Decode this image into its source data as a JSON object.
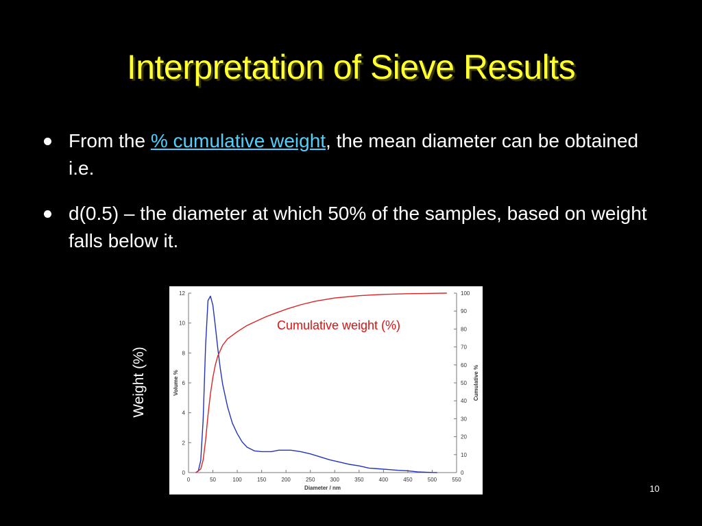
{
  "slide": {
    "title": "Interpretation of Sieve Results",
    "bullets": [
      {
        "before": "From the ",
        "link": "% cumulative weight",
        "after": ", the mean diameter can be obtained i.e."
      },
      {
        "text": "d(0.5) – the diameter at which 50% of the samples, based on weight falls below it."
      }
    ],
    "side_label": "Weight (%)",
    "page_number": "10",
    "colors": {
      "background": "#000000",
      "title": "#ffff33",
      "link": "#4fd1ff"
    }
  },
  "chart_data": {
    "type": "line",
    "xlabel": "Diameter / nm",
    "ylabel": "Volume %",
    "y2label": "Cumulative %",
    "annotation": "Cumulative weight (%)",
    "xlim": [
      0,
      550
    ],
    "ylim": [
      0,
      12
    ],
    "y2lim": [
      0,
      100
    ],
    "xticks": [
      0,
      50,
      100,
      150,
      200,
      250,
      300,
      350,
      400,
      450,
      500,
      550
    ],
    "yticks": [
      0,
      2,
      4,
      6,
      8,
      10,
      12
    ],
    "y2ticks": [
      0,
      10,
      20,
      30,
      40,
      50,
      60,
      70,
      80,
      90,
      100
    ],
    "series": [
      {
        "axis": "left",
        "color": "#2233bb",
        "points": [
          [
            15,
            0
          ],
          [
            20,
            0.1
          ],
          [
            25,
            0.8
          ],
          [
            30,
            3.5
          ],
          [
            35,
            8.5
          ],
          [
            40,
            11.5
          ],
          [
            45,
            11.8
          ],
          [
            50,
            11.2
          ],
          [
            55,
            9.8
          ],
          [
            60,
            8.3
          ],
          [
            65,
            7
          ],
          [
            70,
            5.9
          ],
          [
            80,
            4.4
          ],
          [
            90,
            3.3
          ],
          [
            100,
            2.6
          ],
          [
            110,
            2.05
          ],
          [
            120,
            1.7
          ],
          [
            135,
            1.45
          ],
          [
            150,
            1.4
          ],
          [
            170,
            1.4
          ],
          [
            185,
            1.5
          ],
          [
            210,
            1.5
          ],
          [
            230,
            1.4
          ],
          [
            250,
            1.25
          ],
          [
            270,
            1.05
          ],
          [
            290,
            0.85
          ],
          [
            310,
            0.7
          ],
          [
            330,
            0.55
          ],
          [
            350,
            0.45
          ],
          [
            370,
            0.3
          ],
          [
            390,
            0.25
          ],
          [
            410,
            0.2
          ],
          [
            430,
            0.15
          ],
          [
            450,
            0.12
          ],
          [
            470,
            0.05
          ],
          [
            490,
            0.02
          ],
          [
            510,
            0
          ]
        ]
      },
      {
        "axis": "right",
        "color": "#dd2222",
        "points": [
          [
            15,
            0
          ],
          [
            25,
            2
          ],
          [
            30,
            7
          ],
          [
            35,
            18
          ],
          [
            40,
            32
          ],
          [
            45,
            44
          ],
          [
            50,
            53
          ],
          [
            55,
            60
          ],
          [
            60,
            65
          ],
          [
            70,
            71
          ],
          [
            80,
            74.5
          ],
          [
            90,
            76.5
          ],
          [
            100,
            78.5
          ],
          [
            120,
            82
          ],
          [
            140,
            84.5
          ],
          [
            160,
            87
          ],
          [
            180,
            89
          ],
          [
            200,
            91
          ],
          [
            230,
            93.5
          ],
          [
            260,
            95.5
          ],
          [
            300,
            97.3
          ],
          [
            350,
            98.6
          ],
          [
            400,
            99.3
          ],
          [
            450,
            99.7
          ],
          [
            500,
            99.9
          ],
          [
            530,
            100
          ]
        ]
      }
    ]
  }
}
